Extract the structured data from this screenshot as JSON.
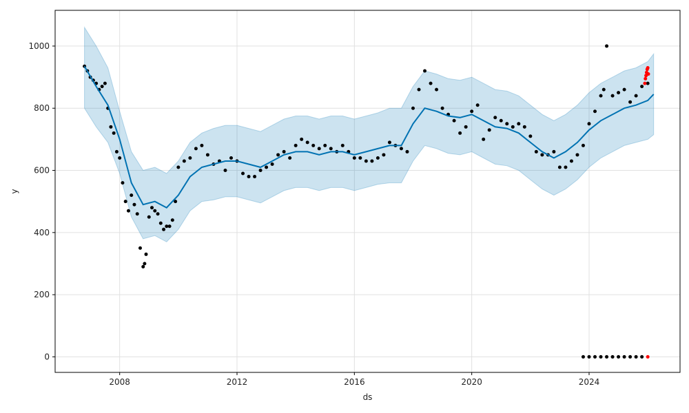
{
  "chart_data": {
    "type": "line",
    "xlabel": "ds",
    "ylabel": "y",
    "xlim": [
      2005.8,
      2027.1
    ],
    "ylim": [
      -50,
      1115
    ],
    "grid": true,
    "x_ticks": [
      {
        "value": 2008,
        "label": "2008"
      },
      {
        "value": 2012,
        "label": "2012"
      },
      {
        "value": 2016,
        "label": "2016"
      },
      {
        "value": 2020,
        "label": "2020"
      },
      {
        "value": 2024,
        "label": "2024"
      }
    ],
    "y_ticks": [
      {
        "value": 0,
        "label": "0"
      },
      {
        "value": 200,
        "label": "200"
      },
      {
        "value": 400,
        "label": "400"
      },
      {
        "value": 600,
        "label": "600"
      },
      {
        "value": 800,
        "label": "800"
      },
      {
        "value": 1000,
        "label": "1000"
      }
    ],
    "forecast": {
      "x": [
        2006.8,
        2007.2,
        2007.6,
        2008.0,
        2008.4,
        2008.8,
        2009.2,
        2009.6,
        2010.0,
        2010.4,
        2010.8,
        2011.2,
        2011.6,
        2012.0,
        2012.4,
        2012.8,
        2013.2,
        2013.6,
        2014.0,
        2014.4,
        2014.8,
        2015.2,
        2015.6,
        2016.0,
        2016.4,
        2016.8,
        2017.2,
        2017.6,
        2018.0,
        2018.4,
        2018.8,
        2019.2,
        2019.6,
        2020.0,
        2020.4,
        2020.8,
        2021.2,
        2021.6,
        2022.0,
        2022.4,
        2022.8,
        2023.2,
        2023.6,
        2024.0,
        2024.4,
        2024.8,
        2025.2,
        2025.6,
        2026.0,
        2026.2
      ],
      "yhat": [
        935,
        870,
        810,
        700,
        560,
        490,
        500,
        480,
        520,
        580,
        610,
        620,
        630,
        630,
        620,
        610,
        630,
        650,
        660,
        660,
        650,
        660,
        660,
        650,
        660,
        670,
        680,
        680,
        750,
        800,
        790,
        775,
        770,
        780,
        760,
        740,
        735,
        720,
        690,
        660,
        640,
        660,
        690,
        730,
        760,
        780,
        800,
        810,
        825,
        845
      ],
      "upper": [
        1060,
        1000,
        930,
        790,
        660,
        600,
        610,
        590,
        630,
        690,
        720,
        735,
        745,
        745,
        735,
        725,
        745,
        765,
        775,
        775,
        765,
        775,
        775,
        765,
        775,
        785,
        800,
        800,
        870,
        920,
        910,
        895,
        890,
        900,
        880,
        860,
        855,
        840,
        810,
        780,
        760,
        780,
        810,
        850,
        880,
        900,
        920,
        930,
        950,
        975
      ],
      "lower": [
        800,
        740,
        690,
        590,
        450,
        380,
        390,
        370,
        410,
        470,
        500,
        505,
        515,
        515,
        505,
        495,
        515,
        535,
        545,
        545,
        535,
        545,
        545,
        535,
        545,
        555,
        560,
        560,
        630,
        680,
        670,
        655,
        650,
        660,
        640,
        620,
        615,
        600,
        570,
        540,
        520,
        540,
        570,
        610,
        640,
        660,
        680,
        690,
        700,
        715
      ]
    },
    "observed": {
      "x": [
        2006.8,
        2006.9,
        2007.0,
        2007.1,
        2007.2,
        2007.3,
        2007.4,
        2007.5,
        2007.6,
        2007.7,
        2007.8,
        2007.9,
        2008.0,
        2008.1,
        2008.2,
        2008.3,
        2008.4,
        2008.5,
        2008.6,
        2008.7,
        2008.8,
        2008.85,
        2008.9,
        2009.0,
        2009.1,
        2009.2,
        2009.3,
        2009.4,
        2009.5,
        2009.6,
        2009.7,
        2009.8,
        2009.9,
        2010.0,
        2010.2,
        2010.4,
        2010.6,
        2010.8,
        2011.0,
        2011.2,
        2011.4,
        2011.6,
        2011.8,
        2012.0,
        2012.2,
        2012.4,
        2012.6,
        2012.8,
        2013.0,
        2013.2,
        2013.4,
        2013.6,
        2013.8,
        2014.0,
        2014.2,
        2014.4,
        2014.6,
        2014.8,
        2015.0,
        2015.2,
        2015.4,
        2015.6,
        2015.8,
        2016.0,
        2016.2,
        2016.4,
        2016.6,
        2016.8,
        2017.0,
        2017.2,
        2017.4,
        2017.6,
        2017.8,
        2018.0,
        2018.2,
        2018.4,
        2018.6,
        2018.8,
        2019.0,
        2019.2,
        2019.4,
        2019.6,
        2019.8,
        2020.0,
        2020.2,
        2020.4,
        2020.6,
        2020.8,
        2021.0,
        2021.2,
        2021.4,
        2021.6,
        2021.8,
        2022.0,
        2022.2,
        2022.4,
        2022.6,
        2022.8,
        2023.0,
        2023.2,
        2023.4,
        2023.6,
        2023.8,
        2024.0,
        2024.2,
        2024.4,
        2024.5,
        2024.6,
        2024.8,
        2025.0,
        2025.2,
        2025.4,
        2025.6,
        2025.8,
        2026.0,
        2023.8,
        2024.0,
        2024.2,
        2024.4,
        2024.6,
        2024.8,
        2025.0,
        2025.2,
        2025.4,
        2025.6,
        2025.8
      ],
      "y": [
        935,
        920,
        900,
        890,
        880,
        860,
        870,
        880,
        800,
        740,
        720,
        660,
        640,
        560,
        500,
        470,
        520,
        490,
        460,
        350,
        290,
        300,
        330,
        450,
        480,
        470,
        460,
        430,
        410,
        420,
        420,
        440,
        500,
        610,
        630,
        640,
        670,
        680,
        650,
        620,
        630,
        600,
        640,
        630,
        590,
        580,
        580,
        600,
        610,
        620,
        650,
        660,
        640,
        680,
        700,
        690,
        680,
        670,
        680,
        670,
        660,
        680,
        660,
        640,
        640,
        630,
        630,
        640,
        650,
        690,
        680,
        670,
        660,
        800,
        860,
        920,
        880,
        860,
        800,
        780,
        760,
        720,
        740,
        790,
        810,
        700,
        730,
        770,
        760,
        750,
        740,
        750,
        740,
        710,
        660,
        650,
        650,
        660,
        610,
        610,
        630,
        650,
        680,
        750,
        790,
        840,
        860,
        1000,
        840,
        850,
        860,
        820,
        840,
        870,
        880,
        0,
        0,
        0,
        0,
        0,
        0,
        0,
        0,
        0,
        0,
        0
      ]
    },
    "future_points": {
      "x": [
        2025.9,
        2025.92,
        2025.94,
        2025.96,
        2025.98,
        2026.0,
        2026.02,
        2026.0
      ],
      "y": [
        880,
        895,
        905,
        915,
        925,
        930,
        910,
        0
      ]
    },
    "colors": {
      "line": "#0072B2",
      "band": "#0072B2",
      "observed": "#000000",
      "future": "#ff0000",
      "grid": "#e0e0e0",
      "axis": "#000000"
    }
  }
}
